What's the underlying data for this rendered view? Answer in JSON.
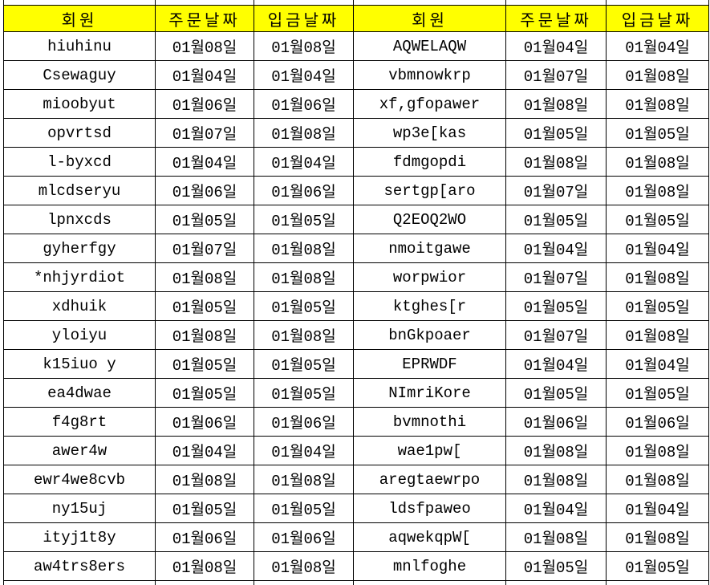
{
  "table": {
    "header_bg": "#FFFF00",
    "border_color": "#000000",
    "headers": [
      {
        "label": "회원"
      },
      {
        "label": "주문날짜"
      },
      {
        "label": "입금날짜"
      },
      {
        "label": "회원"
      },
      {
        "label": "주문날짜"
      },
      {
        "label": "입금날짜"
      }
    ],
    "rows": [
      [
        "hiuhinu",
        "01월08일",
        "01월08일",
        "AQWELAQW",
        "01월04일",
        "01월04일"
      ],
      [
        "Csewaguy",
        "01월04일",
        "01월04일",
        "vbmnowkrp",
        "01월07일",
        "01월08일"
      ],
      [
        "mioobyut",
        "01월06일",
        "01월06일",
        "xf,gfopawer",
        "01월08일",
        "01월08일"
      ],
      [
        "opvrtsd",
        "01월07일",
        "01월08일",
        "wp3e[kas",
        "01월05일",
        "01월05일"
      ],
      [
        "l-byxcd",
        "01월04일",
        "01월04일",
        "fdmgopdi",
        "01월08일",
        "01월08일"
      ],
      [
        "mlcdseryu",
        "01월06일",
        "01월06일",
        "sertgp[aro",
        "01월07일",
        "01월08일"
      ],
      [
        "lpnxcds",
        "01월05일",
        "01월05일",
        "Q2EOQ2WO",
        "01월05일",
        "01월05일"
      ],
      [
        "gyherfgy",
        "01월07일",
        "01월08일",
        "nmoitgawe",
        "01월04일",
        "01월04일"
      ],
      [
        "*nhjyrdiot",
        "01월08일",
        "01월08일",
        "worpwior",
        "01월07일",
        "01월08일"
      ],
      [
        "xdhuik",
        "01월05일",
        "01월05일",
        "ktghes[r",
        "01월05일",
        "01월05일"
      ],
      [
        "yloiyu",
        "01월08일",
        "01월08일",
        "bnGkpoaer",
        "01월07일",
        "01월08일"
      ],
      [
        "k15iuo y",
        "01월05일",
        "01월05일",
        "EPRWDF",
        "01월04일",
        "01월04일"
      ],
      [
        "ea4dwae",
        "01월05일",
        "01월05일",
        "NImriKore",
        "01월05일",
        "01월05일"
      ],
      [
        "f4g8rt",
        "01월06일",
        "01월06일",
        "bvmnothi",
        "01월06일",
        "01월06일"
      ],
      [
        "awer4w",
        "01월04일",
        "01월04일",
        "wae1pw[",
        "01월08일",
        "01월08일"
      ],
      [
        "ewr4we8cvb",
        "01월08일",
        "01월08일",
        "aregtaewrpo",
        "01월08일",
        "01월08일"
      ],
      [
        "ny15uj",
        "01월05일",
        "01월05일",
        "ldsfpaweo",
        "01월04일",
        "01월04일"
      ],
      [
        "ityj1t8y",
        "01월06일",
        "01월06일",
        "aqwekqpW[",
        "01월08일",
        "01월08일"
      ],
      [
        "aw4trs8ers",
        "01월08일",
        "01월08일",
        "mnlfoghe",
        "01월05일",
        "01월05일"
      ]
    ]
  }
}
